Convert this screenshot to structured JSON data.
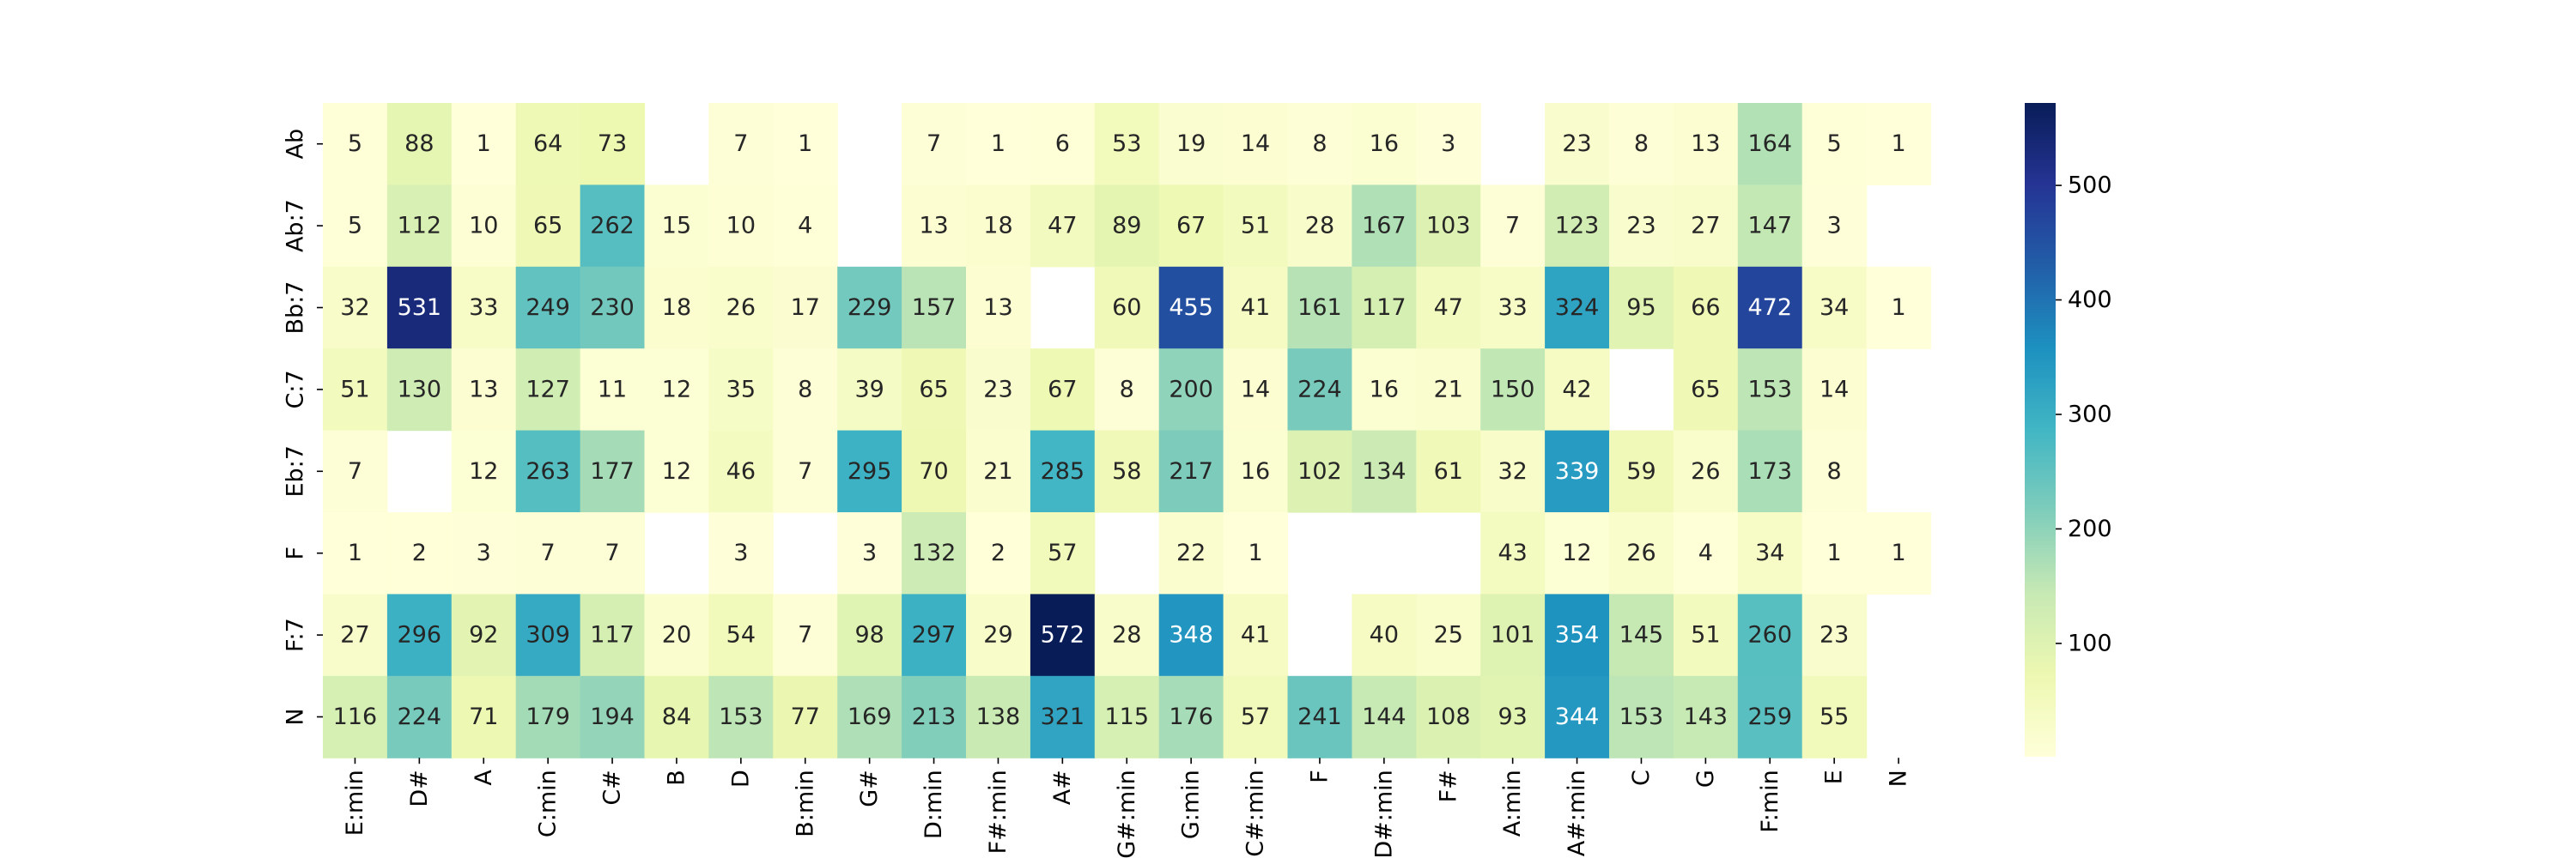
{
  "chart_data": {
    "type": "heatmap",
    "title": "",
    "xlabel": "",
    "ylabel": "",
    "colormap": "YlGnBu",
    "vmin": 1,
    "vmax": 572,
    "colorbar_ticks": [
      100,
      200,
      300,
      400,
      500
    ],
    "x_categories": [
      "E:min",
      "D#",
      "A",
      "C:min",
      "C#",
      "B",
      "D",
      "B:min",
      "G#",
      "D:min",
      "F#:min",
      "A#",
      "G#:min",
      "G:min",
      "C#:min",
      "F",
      "D#:min",
      "F#",
      "A:min",
      "A#:min",
      "C",
      "G",
      "F:min",
      "E",
      "N"
    ],
    "y_categories": [
      "Ab",
      "Ab:7",
      "Bb:7",
      "C:7",
      "Eb:7",
      "F",
      "F:7",
      "N"
    ],
    "values": [
      [
        5,
        88,
        1,
        64,
        73,
        null,
        7,
        1,
        null,
        7,
        1,
        6,
        53,
        19,
        14,
        8,
        16,
        3,
        null,
        23,
        8,
        13,
        164,
        5,
        1
      ],
      [
        5,
        112,
        10,
        65,
        262,
        15,
        10,
        4,
        null,
        13,
        18,
        47,
        89,
        67,
        51,
        28,
        167,
        103,
        7,
        123,
        23,
        27,
        147,
        3,
        null
      ],
      [
        32,
        531,
        33,
        249,
        230,
        18,
        26,
        17,
        229,
        157,
        13,
        null,
        60,
        455,
        41,
        161,
        117,
        47,
        33,
        324,
        95,
        66,
        472,
        34,
        1
      ],
      [
        51,
        130,
        13,
        127,
        11,
        12,
        35,
        8,
        39,
        65,
        23,
        67,
        8,
        200,
        14,
        224,
        16,
        21,
        150,
        42,
        null,
        65,
        153,
        14,
        null
      ],
      [
        7,
        null,
        12,
        263,
        177,
        12,
        46,
        7,
        295,
        70,
        21,
        285,
        58,
        217,
        16,
        102,
        134,
        61,
        32,
        339,
        59,
        26,
        173,
        8,
        null
      ],
      [
        1,
        2,
        3,
        7,
        7,
        null,
        3,
        null,
        3,
        132,
        2,
        57,
        null,
        22,
        1,
        null,
        null,
        null,
        43,
        12,
        26,
        4,
        34,
        1,
        1
      ],
      [
        27,
        296,
        92,
        309,
        117,
        20,
        54,
        7,
        98,
        297,
        29,
        572,
        28,
        348,
        41,
        null,
        40,
        25,
        101,
        354,
        145,
        51,
        260,
        23,
        null
      ],
      [
        116,
        224,
        71,
        179,
        194,
        84,
        153,
        77,
        169,
        213,
        138,
        321,
        115,
        176,
        57,
        241,
        144,
        108,
        93,
        344,
        153,
        143,
        259,
        55,
        null
      ]
    ]
  }
}
